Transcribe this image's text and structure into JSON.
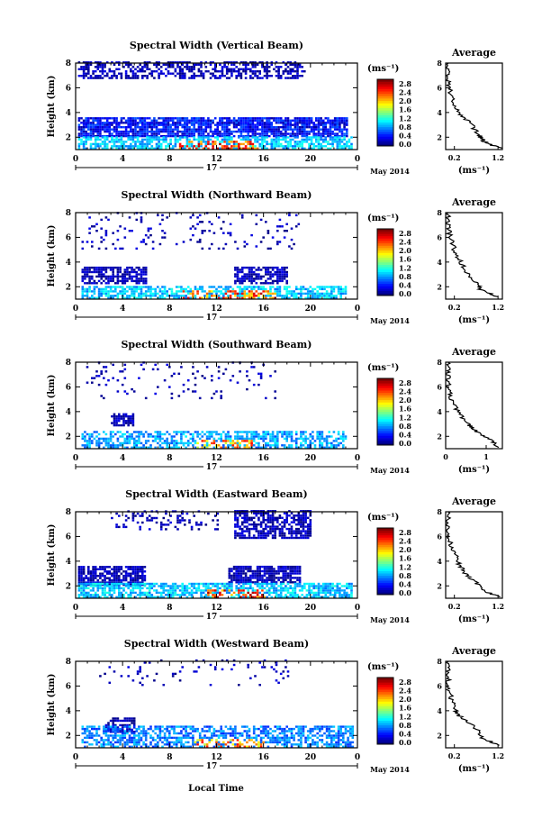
{
  "figure": {
    "date_label": "May 2014",
    "day_label": "17",
    "xlabel": "Local Time",
    "ylabel": "Height (km)",
    "colorbar_unit": "(ms⁻¹)",
    "avg_title": "Average",
    "avg_xlabel": "(ms⁻¹)"
  },
  "chart_data": [
    {
      "type": "heatmap",
      "title": "Spectral Width (Vertical Beam)",
      "xlabel": "Local Time",
      "ylabel": "Height (km)",
      "xlim": [
        0,
        24
      ],
      "ylim": [
        1,
        8
      ],
      "xticks": [
        "0",
        "4",
        "8",
        "12",
        "16",
        "20",
        "0"
      ],
      "yticks": [
        "2",
        "4",
        "6",
        "8"
      ],
      "colorbar": {
        "min": 0.0,
        "max": 2.8,
        "ticks": [
          "2.8",
          "2.4",
          "2.0",
          "1.6",
          "1.2",
          "0.8",
          "0.4",
          "0.0"
        ]
      },
      "layers": [
        {
          "t0": 0.2,
          "t1": 19.5,
          "h0": 6.7,
          "h1": 8.0,
          "v": 0.05,
          "density": 0.55
        },
        {
          "t0": 0.2,
          "t1": 23.0,
          "h0": 2.0,
          "h1": 3.5,
          "v": 0.35,
          "density": 0.85
        },
        {
          "t0": 0.2,
          "t1": 23.5,
          "h0": 1.0,
          "h1": 2.0,
          "v": 0.9,
          "density": 0.7
        }
      ],
      "hot_spot": {
        "t0": 8.5,
        "t1": 15.5,
        "h0": 1.0,
        "h1": 1.6,
        "v": 2.3
      },
      "average": {
        "xlim": [
          0,
          1.3
        ],
        "ylim": [
          1,
          8
        ],
        "xticks": [
          "0.2",
          "1.2"
        ],
        "yticks": [
          "2",
          "4",
          "6",
          "8"
        ],
        "profile": [
          [
            1.25,
            1.1
          ],
          [
            0.9,
            1.6
          ],
          [
            0.75,
            2.2
          ],
          [
            0.55,
            3.2
          ],
          [
            0.3,
            4.0
          ],
          [
            0.15,
            5.0
          ],
          [
            0.08,
            6.0
          ],
          [
            0.05,
            7.0
          ],
          [
            0.06,
            8.0
          ]
        ]
      }
    },
    {
      "type": "heatmap",
      "title": "Spectral Width (Northward Beam)",
      "xlabel": "Local Time",
      "ylabel": "Height (km)",
      "xlim": [
        0,
        24
      ],
      "ylim": [
        1,
        8
      ],
      "xticks": [
        "0",
        "4",
        "8",
        "12",
        "16",
        "20",
        "0"
      ],
      "yticks": [
        "2",
        "4",
        "6",
        "8"
      ],
      "colorbar": {
        "min": 0.0,
        "max": 2.8,
        "ticks": [
          "2.8",
          "2.4",
          "2.0",
          "1.6",
          "1.2",
          "0.8",
          "0.4",
          "0.0"
        ]
      },
      "layers": [
        {
          "t0": 0.5,
          "t1": 19.0,
          "h0": 5.0,
          "h1": 8.0,
          "v": 0.05,
          "density": 0.08
        },
        {
          "t0": 0.5,
          "t1": 6.0,
          "h0": 2.2,
          "h1": 3.5,
          "v": 0.1,
          "density": 0.75
        },
        {
          "t0": 13.5,
          "t1": 18.0,
          "h0": 2.2,
          "h1": 3.5,
          "v": 0.1,
          "density": 0.75
        },
        {
          "t0": 0.5,
          "t1": 23.0,
          "h0": 1.0,
          "h1": 2.0,
          "v": 0.9,
          "density": 0.7
        }
      ],
      "hot_spot": {
        "t0": 9.0,
        "t1": 17.0,
        "h0": 1.0,
        "h1": 1.6,
        "v": 2.2
      },
      "average": {
        "xlim": [
          0,
          1.3
        ],
        "ylim": [
          1,
          8
        ],
        "xticks": [
          "0.2",
          "1.2"
        ],
        "yticks": [
          "2",
          "4",
          "6",
          "8"
        ],
        "profile": [
          [
            1.2,
            1.2
          ],
          [
            0.8,
            1.8
          ],
          [
            0.7,
            2.4
          ],
          [
            0.45,
            3.2
          ],
          [
            0.35,
            4.0
          ],
          [
            0.2,
            5.0
          ],
          [
            0.1,
            6.0
          ],
          [
            0.05,
            7.0
          ],
          [
            0.06,
            8.0
          ]
        ]
      }
    },
    {
      "type": "heatmap",
      "title": "Spectral Width (Southward Beam)",
      "xlabel": "Local Time",
      "ylabel": "Height (km)",
      "xlim": [
        0,
        24
      ],
      "ylim": [
        1,
        8
      ],
      "xticks": [
        "0",
        "4",
        "8",
        "12",
        "16",
        "20",
        "0"
      ],
      "yticks": [
        "2",
        "4",
        "6",
        "8"
      ],
      "colorbar": {
        "min": 0.0,
        "max": 2.8,
        "ticks": [
          "2.8",
          "2.4",
          "2.0",
          "1.6",
          "1.2",
          "0.8",
          "0.4",
          "0.0"
        ]
      },
      "layers": [
        {
          "t0": 0.5,
          "t1": 17.0,
          "h0": 5.0,
          "h1": 8.0,
          "v": 0.05,
          "density": 0.08
        },
        {
          "t0": 3.0,
          "t1": 5.0,
          "h0": 2.8,
          "h1": 3.8,
          "v": 0.1,
          "density": 0.8
        },
        {
          "t0": 0.5,
          "t1": 23.0,
          "h0": 1.0,
          "h1": 2.4,
          "v": 0.8,
          "density": 0.6
        }
      ],
      "hot_spot": {
        "t0": 10.0,
        "t1": 15.0,
        "h0": 1.0,
        "h1": 1.6,
        "v": 2.0
      },
      "average": {
        "xlim": [
          0,
          1.4
        ],
        "ylim": [
          1,
          8
        ],
        "xticks": [
          "0",
          "1"
        ],
        "yticks": [
          "2",
          "4",
          "6",
          "8"
        ],
        "profile": [
          [
            1.3,
            1.1
          ],
          [
            1.1,
            1.8
          ],
          [
            0.75,
            2.4
          ],
          [
            0.55,
            3.0
          ],
          [
            0.3,
            4.0
          ],
          [
            0.15,
            5.0
          ],
          [
            0.08,
            6.0
          ],
          [
            0.06,
            7.0
          ],
          [
            0.06,
            8.0
          ]
        ]
      }
    },
    {
      "type": "heatmap",
      "title": "Spectral Width (Eastward Beam)",
      "xlabel": "Local Time",
      "ylabel": "Height (km)",
      "xlim": [
        0,
        24
      ],
      "ylim": [
        1,
        8
      ],
      "xticks": [
        "0",
        "4",
        "8",
        "12",
        "16",
        "20",
        "0"
      ],
      "yticks": [
        "2",
        "4",
        "6",
        "8"
      ],
      "colorbar": {
        "min": 0.0,
        "max": 2.8,
        "ticks": [
          "2.8",
          "2.4",
          "2.0",
          "1.6",
          "1.2",
          "0.8",
          "0.4",
          "0.0"
        ]
      },
      "layers": [
        {
          "t0": 3.0,
          "t1": 12.0,
          "h0": 6.5,
          "h1": 8.0,
          "v": 0.05,
          "density": 0.25
        },
        {
          "t0": 13.5,
          "t1": 20.0,
          "h0": 5.8,
          "h1": 8.0,
          "v": 0.05,
          "density": 0.7
        },
        {
          "t0": 0.2,
          "t1": 6.0,
          "h0": 2.0,
          "h1": 3.5,
          "v": 0.1,
          "density": 0.8
        },
        {
          "t0": 13.0,
          "t1": 19.0,
          "h0": 2.2,
          "h1": 3.5,
          "v": 0.1,
          "density": 0.8
        },
        {
          "t0": 0.2,
          "t1": 23.5,
          "h0": 1.0,
          "h1": 2.2,
          "v": 0.9,
          "density": 0.7
        }
      ],
      "hot_spot": {
        "t0": 11.0,
        "t1": 16.0,
        "h0": 1.0,
        "h1": 1.6,
        "v": 2.3
      },
      "average": {
        "xlim": [
          0,
          1.3
        ],
        "ylim": [
          1,
          8
        ],
        "xticks": [
          "0.2",
          "1.2"
        ],
        "yticks": [
          "2",
          "4",
          "6",
          "8"
        ],
        "profile": [
          [
            1.2,
            1.1
          ],
          [
            0.85,
            1.7
          ],
          [
            0.65,
            2.4
          ],
          [
            0.4,
            3.2
          ],
          [
            0.28,
            4.0
          ],
          [
            0.15,
            5.0
          ],
          [
            0.08,
            6.0
          ],
          [
            0.05,
            7.0
          ],
          [
            0.06,
            8.0
          ]
        ]
      }
    },
    {
      "type": "heatmap",
      "title": "Spectral Width (Westward Beam)",
      "xlabel": "Local Time",
      "ylabel": "Height (km)",
      "xlim": [
        0,
        24
      ],
      "ylim": [
        1,
        8
      ],
      "xticks": [
        "0",
        "4",
        "8",
        "12",
        "16",
        "20",
        "0"
      ],
      "yticks": [
        "2",
        "4",
        "6",
        "8"
      ],
      "colorbar": {
        "min": 0.0,
        "max": 2.8,
        "ticks": [
          "2.8",
          "2.4",
          "2.0",
          "1.6",
          "1.2",
          "0.8",
          "0.4",
          "0.0"
        ]
      },
      "layers": [
        {
          "t0": 2.0,
          "t1": 18.0,
          "h0": 6.0,
          "h1": 8.0,
          "v": 0.05,
          "density": 0.07
        },
        {
          "t0": 2.5,
          "t1": 5.0,
          "h0": 2.2,
          "h1": 3.4,
          "v": 0.1,
          "density": 0.75
        },
        {
          "t0": 0.5,
          "t1": 23.5,
          "h0": 1.0,
          "h1": 2.8,
          "v": 0.7,
          "density": 0.6
        }
      ],
      "hot_spot": {
        "t0": 10.0,
        "t1": 16.0,
        "h0": 1.0,
        "h1": 1.6,
        "v": 2.0
      },
      "average": {
        "xlim": [
          0,
          1.3
        ],
        "ylim": [
          1,
          8
        ],
        "xticks": [
          "0.2",
          "1.2"
        ],
        "yticks": [
          "2",
          "4",
          "6",
          "8"
        ],
        "profile": [
          [
            1.2,
            1.2
          ],
          [
            0.85,
            1.8
          ],
          [
            0.65,
            2.8
          ],
          [
            0.3,
            3.6
          ],
          [
            0.22,
            4.0
          ],
          [
            0.12,
            5.0
          ],
          [
            0.06,
            6.0
          ],
          [
            0.05,
            7.0
          ],
          [
            0.06,
            8.0
          ]
        ]
      }
    }
  ]
}
